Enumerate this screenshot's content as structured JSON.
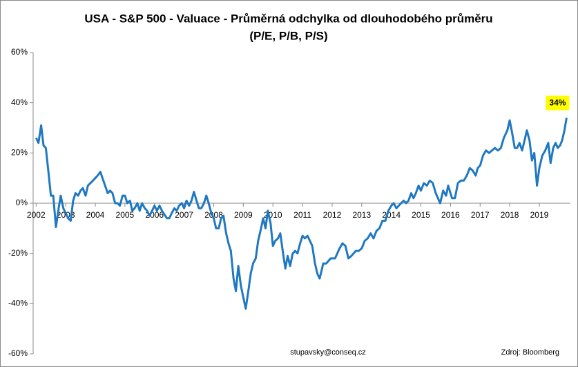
{
  "chart_data": {
    "type": "line",
    "title": "USA - S&P 500 - Valuace - Průměrná odchylka od dlouhodobého průměru",
    "subtitle": "(P/E, P/B, P/S)",
    "color": "#1f78c1",
    "xlim": [
      2001.9,
      2020.05
    ],
    "xticks": [
      2002,
      2003,
      2004,
      2005,
      2006,
      2007,
      2008,
      2009,
      2010,
      2011,
      2012,
      2013,
      2014,
      2015,
      2016,
      2017,
      2018,
      2019
    ],
    "ylim": [
      -60,
      60
    ],
    "yticks": [
      {
        "value": 60,
        "label": "60%"
      },
      {
        "value": 40,
        "label": "40%"
      },
      {
        "value": 20,
        "label": "20%"
      },
      {
        "value": 0,
        "label": "0%"
      },
      {
        "value": -20,
        "label": "-20%"
      },
      {
        "value": -40,
        "label": "-40%"
      },
      {
        "value": -60,
        "label": "-60%"
      }
    ],
    "grid": false,
    "x": [
      2002.0,
      2002.08,
      2002.17,
      2002.25,
      2002.33,
      2002.42,
      2002.5,
      2002.58,
      2002.67,
      2002.75,
      2002.83,
      2002.92,
      2003.0,
      2003.08,
      2003.17,
      2003.25,
      2003.33,
      2003.42,
      2003.5,
      2003.58,
      2003.67,
      2003.75,
      2003.92,
      2004.08,
      2004.17,
      2004.33,
      2004.42,
      2004.5,
      2004.58,
      2004.67,
      2004.75,
      2004.83,
      2004.92,
      2005.0,
      2005.08,
      2005.17,
      2005.25,
      2005.33,
      2005.42,
      2005.5,
      2005.58,
      2005.67,
      2005.75,
      2005.83,
      2005.92,
      2006.0,
      2006.08,
      2006.17,
      2006.25,
      2006.42,
      2006.5,
      2006.58,
      2006.67,
      2006.75,
      2006.83,
      2006.92,
      2007.0,
      2007.08,
      2007.17,
      2007.25,
      2007.33,
      2007.42,
      2007.5,
      2007.58,
      2007.67,
      2007.75,
      2007.83,
      2007.92,
      2008.0,
      2008.08,
      2008.17,
      2008.25,
      2008.33,
      2008.42,
      2008.5,
      2008.58,
      2008.67,
      2008.75,
      2008.83,
      2008.92,
      2009.08,
      2009.17,
      2009.25,
      2009.33,
      2009.42,
      2009.5,
      2009.58,
      2009.67,
      2009.75,
      2009.83,
      2009.92,
      2010.0,
      2010.08,
      2010.17,
      2010.25,
      2010.33,
      2010.42,
      2010.5,
      2010.58,
      2010.67,
      2010.75,
      2010.83,
      2010.92,
      2011.0,
      2011.08,
      2011.17,
      2011.25,
      2011.33,
      2011.42,
      2011.5,
      2011.58,
      2011.7,
      2011.8,
      2011.95,
      2012.1,
      2012.25,
      2012.35,
      2012.45,
      2012.55,
      2012.65,
      2012.8,
      2012.9,
      2013.0,
      2013.1,
      2013.2,
      2013.3,
      2013.4,
      2013.5,
      2013.6,
      2013.7,
      2013.8,
      2013.9,
      2014.0,
      2014.08,
      2014.17,
      2014.25,
      2014.33,
      2014.42,
      2014.5,
      2014.58,
      2014.67,
      2014.75,
      2014.83,
      2014.92,
      2015.0,
      2015.1,
      2015.2,
      2015.3,
      2015.4,
      2015.5,
      2015.65,
      2015.75,
      2015.85,
      2015.92,
      2016.05,
      2016.15,
      2016.25,
      2016.35,
      2016.45,
      2016.55,
      2016.65,
      2016.75,
      2016.85,
      2016.92,
      2017.0,
      2017.1,
      2017.2,
      2017.3,
      2017.4,
      2017.5,
      2017.6,
      2017.7,
      2017.8,
      2017.92,
      2018.0,
      2018.08,
      2018.17,
      2018.25,
      2018.33,
      2018.42,
      2018.5,
      2018.58,
      2018.67,
      2018.75,
      2018.83,
      2018.92,
      2019.0,
      2019.1,
      2019.2,
      2019.3,
      2019.38,
      2019.47,
      2019.55,
      2019.62,
      2019.7,
      2019.77,
      2019.85,
      2019.92
    ],
    "values": [
      26,
      24,
      31,
      23,
      22,
      12,
      3,
      3,
      -9.5,
      -3,
      3,
      -2,
      -4,
      -6,
      -7,
      1,
      4,
      3,
      5,
      6,
      3,
      7,
      9,
      11,
      12.5,
      7,
      4,
      5,
      4,
      0,
      0,
      -1,
      3,
      3,
      0,
      1,
      -3,
      -2,
      0,
      -3,
      0,
      -2,
      -3,
      -5,
      -3,
      -1,
      -3,
      -1,
      -3,
      -6,
      -6,
      -4,
      -2,
      -3,
      -1,
      0,
      -2,
      1,
      -1,
      1,
      4.5,
      1,
      -2,
      -2,
      0,
      3,
      0,
      -4,
      -6,
      -10,
      -10,
      -6,
      -5,
      -12,
      -16,
      -19,
      -30,
      -35,
      -25,
      -33,
      -42,
      -35,
      -28,
      -24,
      -22,
      -15,
      -11,
      -6,
      -10,
      -3,
      -8,
      -17,
      -15,
      -14,
      -12,
      -19,
      -26,
      -21,
      -25,
      -20,
      -19,
      -20,
      -16,
      -13,
      -14,
      -13,
      -15,
      -17,
      -24,
      -28,
      -30,
      -24,
      -24,
      -22,
      -22,
      -18,
      -16,
      -17,
      -22,
      -21,
      -19,
      -19,
      -18,
      -15,
      -14,
      -12,
      -14,
      -11,
      -10,
      -7,
      -7,
      -3,
      -1,
      0,
      -2,
      -1,
      0,
      1,
      0,
      1,
      4,
      2,
      4,
      7,
      5,
      8,
      7,
      9,
      8,
      4,
      0,
      5,
      3,
      7,
      2,
      2,
      8,
      9,
      9,
      11,
      14,
      13,
      11,
      14,
      15,
      19,
      21,
      20,
      21,
      22,
      21,
      22,
      26,
      29,
      33,
      28,
      22,
      22,
      24,
      21,
      25,
      29,
      25,
      17,
      20,
      7,
      14,
      19,
      21,
      24,
      16,
      22,
      24,
      22,
      23,
      25,
      29,
      34
    ],
    "annotation": "34%",
    "footer_left": "stupavsky@conseq.cz",
    "footer_right": "Zdroj: Bloomberg"
  }
}
